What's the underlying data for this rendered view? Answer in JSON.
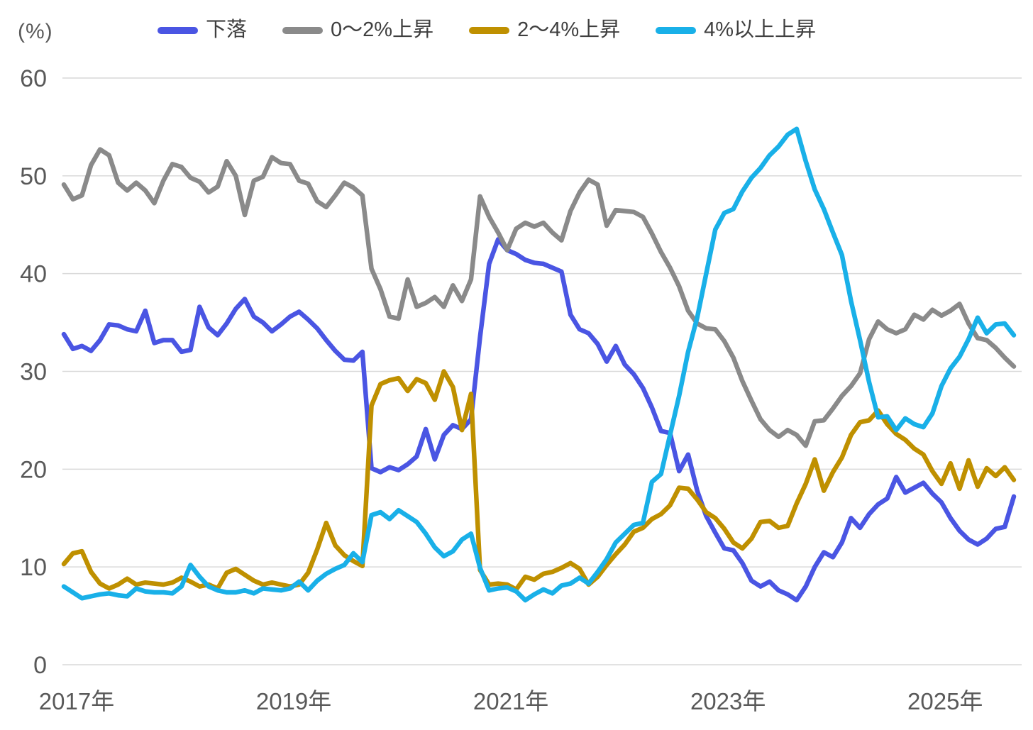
{
  "page": {
    "background_color": "#ffffff"
  },
  "chart_data": {
    "type": "line",
    "title": "",
    "unit_label": "(%)",
    "xlabel": "",
    "ylabel": "(%)",
    "x_tick_labels": [
      "2017年",
      "2019年",
      "2021年",
      "2023年",
      "2025年"
    ],
    "x_tick_month_indices": [
      0,
      24,
      48,
      72,
      96
    ],
    "x_range": {
      "start": "2017-01",
      "end": "2025-10",
      "frequency": "monthly",
      "n_points": 106
    },
    "y_ticks": [
      0,
      10,
      20,
      30,
      40,
      50,
      60
    ],
    "ylim": [
      0,
      60
    ],
    "grid": "horizontal-only",
    "legend_position": "top",
    "axis_text_color": "#595959",
    "legend_text_color": "#3f3f3f",
    "gridline_color": "#d9d9d9",
    "series": [
      {
        "key": "decline",
        "name": "下落",
        "color": "#4a55e3",
        "values": [
          33.8,
          32.3,
          32.6,
          32.1,
          33.2,
          34.8,
          34.7,
          34.3,
          34.1,
          36.2,
          32.9,
          33.2,
          33.2,
          32.0,
          32.2,
          36.6,
          34.5,
          33.7,
          34.9,
          36.4,
          37.4,
          35.6,
          35.0,
          34.1,
          34.8,
          35.6,
          36.1,
          35.3,
          34.4,
          33.2,
          32.1,
          31.2,
          31.1,
          32.0,
          20.1,
          19.7,
          20.2,
          19.9,
          20.5,
          21.3,
          24.1,
          21.0,
          23.5,
          24.5,
          24.1,
          25.1,
          33.5,
          41.0,
          43.5,
          42.4,
          42.0,
          41.4,
          41.1,
          41.0,
          40.6,
          40.2,
          35.8,
          34.3,
          33.9,
          32.8,
          31.0,
          32.6,
          30.7,
          29.7,
          28.3,
          26.3,
          23.9,
          23.7,
          19.8,
          21.5,
          17.8,
          15.2,
          13.5,
          11.9,
          11.7,
          10.4,
          8.6,
          8.0,
          8.5,
          7.6,
          7.2,
          6.6,
          8.0,
          10.0,
          11.5,
          11.0,
          12.5,
          15.0,
          14.0,
          15.4,
          16.4,
          17.0,
          19.2,
          17.6,
          18.1,
          18.6,
          17.5,
          16.6,
          15.0,
          13.7,
          12.8,
          12.3,
          12.9,
          13.9,
          14.1,
          17.2
        ]
      },
      {
        "key": "rise-0-2pct",
        "name": "0〜2%上昇",
        "color": "#8a8a8a",
        "values": [
          49.1,
          47.6,
          48.0,
          51.1,
          52.7,
          52.1,
          49.3,
          48.5,
          49.3,
          48.5,
          47.2,
          49.5,
          51.2,
          50.9,
          49.8,
          49.4,
          48.3,
          48.9,
          51.5,
          50.0,
          46.0,
          49.5,
          49.9,
          51.9,
          51.3,
          51.2,
          49.5,
          49.2,
          47.4,
          46.8,
          48.0,
          49.3,
          48.8,
          48.0,
          40.5,
          38.4,
          35.6,
          35.4,
          39.4,
          36.6,
          37.0,
          37.6,
          36.6,
          38.8,
          37.2,
          39.4,
          47.9,
          45.8,
          44.2,
          42.4,
          44.6,
          45.2,
          44.8,
          45.2,
          44.2,
          43.4,
          46.4,
          48.3,
          49.6,
          49.1,
          44.9,
          46.5,
          46.4,
          46.3,
          45.8,
          44.1,
          42.2,
          40.6,
          38.7,
          36.2,
          34.9,
          34.4,
          34.3,
          33.1,
          31.4,
          29.0,
          27.0,
          25.1,
          24.0,
          23.3,
          24.0,
          23.5,
          22.4,
          24.9,
          25.0,
          26.2,
          27.5,
          28.5,
          29.8,
          33.3,
          35.1,
          34.3,
          33.9,
          34.3,
          35.8,
          35.3,
          36.3,
          35.7,
          36.2,
          36.9,
          34.9,
          33.4,
          33.2,
          32.4,
          31.4,
          30.5
        ]
      },
      {
        "key": "rise-2-4pct",
        "name": "2〜4%上昇",
        "color": "#bf9000",
        "values": [
          10.3,
          11.4,
          11.6,
          9.5,
          8.3,
          7.8,
          8.2,
          8.8,
          8.2,
          8.4,
          8.3,
          8.2,
          8.4,
          8.9,
          8.5,
          8.0,
          8.2,
          7.8,
          9.4,
          9.8,
          9.2,
          8.6,
          8.2,
          8.4,
          8.2,
          8.0,
          8.2,
          9.4,
          11.8,
          14.5,
          12.2,
          11.2,
          10.6,
          10.1,
          26.5,
          28.7,
          29.1,
          29.3,
          28.0,
          29.2,
          28.8,
          27.1,
          30.0,
          28.4,
          24.0,
          27.7,
          9.7,
          8.2,
          8.3,
          8.2,
          7.7,
          9.0,
          8.7,
          9.3,
          9.5,
          9.9,
          10.4,
          9.8,
          8.2,
          9.0,
          10.2,
          11.3,
          12.3,
          13.6,
          14.0,
          14.9,
          15.4,
          16.3,
          18.1,
          18.0,
          16.9,
          15.6,
          15.0,
          13.9,
          12.5,
          11.9,
          12.9,
          14.6,
          14.7,
          14.0,
          14.2,
          16.5,
          18.5,
          21.0,
          17.8,
          19.7,
          21.2,
          23.5,
          24.8,
          25.0,
          26.0,
          24.6,
          23.6,
          23.0,
          22.1,
          21.5,
          19.8,
          18.5,
          20.6,
          18.0,
          20.9,
          18.2,
          20.1,
          19.3,
          20.2,
          18.9
        ]
      },
      {
        "key": "rise-4pct-plus",
        "name": "4%以上上昇",
        "color": "#19b0e8",
        "values": [
          8.0,
          7.4,
          6.8,
          7.0,
          7.2,
          7.3,
          7.1,
          7.0,
          7.8,
          7.5,
          7.4,
          7.4,
          7.3,
          8.0,
          10.2,
          9.0,
          8.0,
          7.6,
          7.4,
          7.4,
          7.6,
          7.3,
          7.8,
          7.7,
          7.6,
          7.8,
          8.5,
          7.6,
          8.6,
          9.3,
          9.8,
          10.2,
          11.4,
          10.5,
          15.3,
          15.6,
          14.9,
          15.8,
          15.2,
          14.6,
          13.4,
          12.0,
          11.1,
          11.6,
          12.8,
          13.4,
          9.9,
          7.6,
          7.8,
          7.9,
          7.5,
          6.6,
          7.2,
          7.7,
          7.3,
          8.1,
          8.3,
          8.9,
          8.3,
          9.5,
          10.8,
          12.5,
          13.4,
          14.3,
          14.5,
          18.7,
          19.5,
          23.5,
          27.5,
          32.0,
          35.5,
          40.0,
          44.5,
          46.2,
          46.6,
          48.4,
          49.8,
          50.8,
          52.1,
          53.0,
          54.2,
          54.8,
          51.5,
          48.6,
          46.6,
          44.2,
          41.9,
          37.2,
          33.2,
          28.9,
          25.3,
          25.4,
          24.0,
          25.2,
          24.6,
          24.3,
          25.7,
          28.5,
          30.3,
          31.5,
          33.3,
          35.5,
          33.9,
          34.8,
          34.9,
          33.7
        ]
      }
    ]
  }
}
